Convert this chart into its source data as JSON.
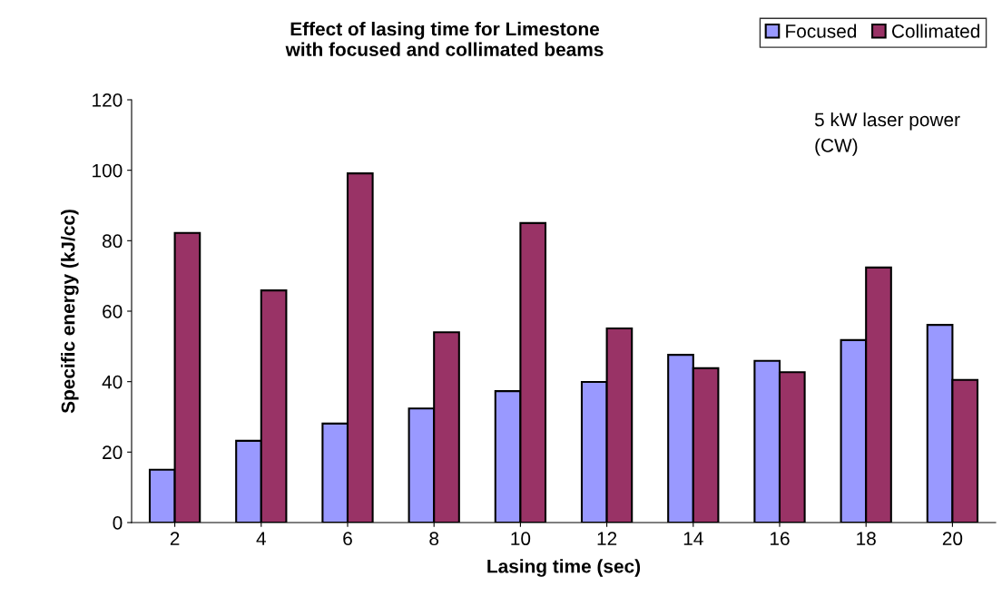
{
  "chart_data": {
    "type": "bar",
    "title": "Effect of lasing time for Limestone\nwith focused and collimated beams",
    "xlabel": "Lasing time (sec)",
    "ylabel": "Specific energy (kJ/cc)",
    "categories": [
      "2",
      "4",
      "6",
      "8",
      "10",
      "12",
      "14",
      "16",
      "18",
      "20"
    ],
    "series": [
      {
        "name": "Focused",
        "color": "#9999ff",
        "values": [
          15.0,
          23.2,
          28.1,
          32.4,
          37.3,
          39.9,
          47.6,
          45.9,
          51.8,
          56.1
        ]
      },
      {
        "name": "Collimated",
        "color": "#993366",
        "values": [
          82.2,
          65.9,
          99.1,
          54.0,
          85.0,
          55.1,
          43.8,
          42.7,
          72.4,
          40.5
        ]
      }
    ],
    "ylim": [
      0,
      120
    ],
    "yticks": [
      0,
      20,
      40,
      60,
      80,
      100,
      120
    ],
    "grid": false,
    "legend": "top right",
    "annotations": [
      "5 kW laser power\n(CW)"
    ]
  }
}
